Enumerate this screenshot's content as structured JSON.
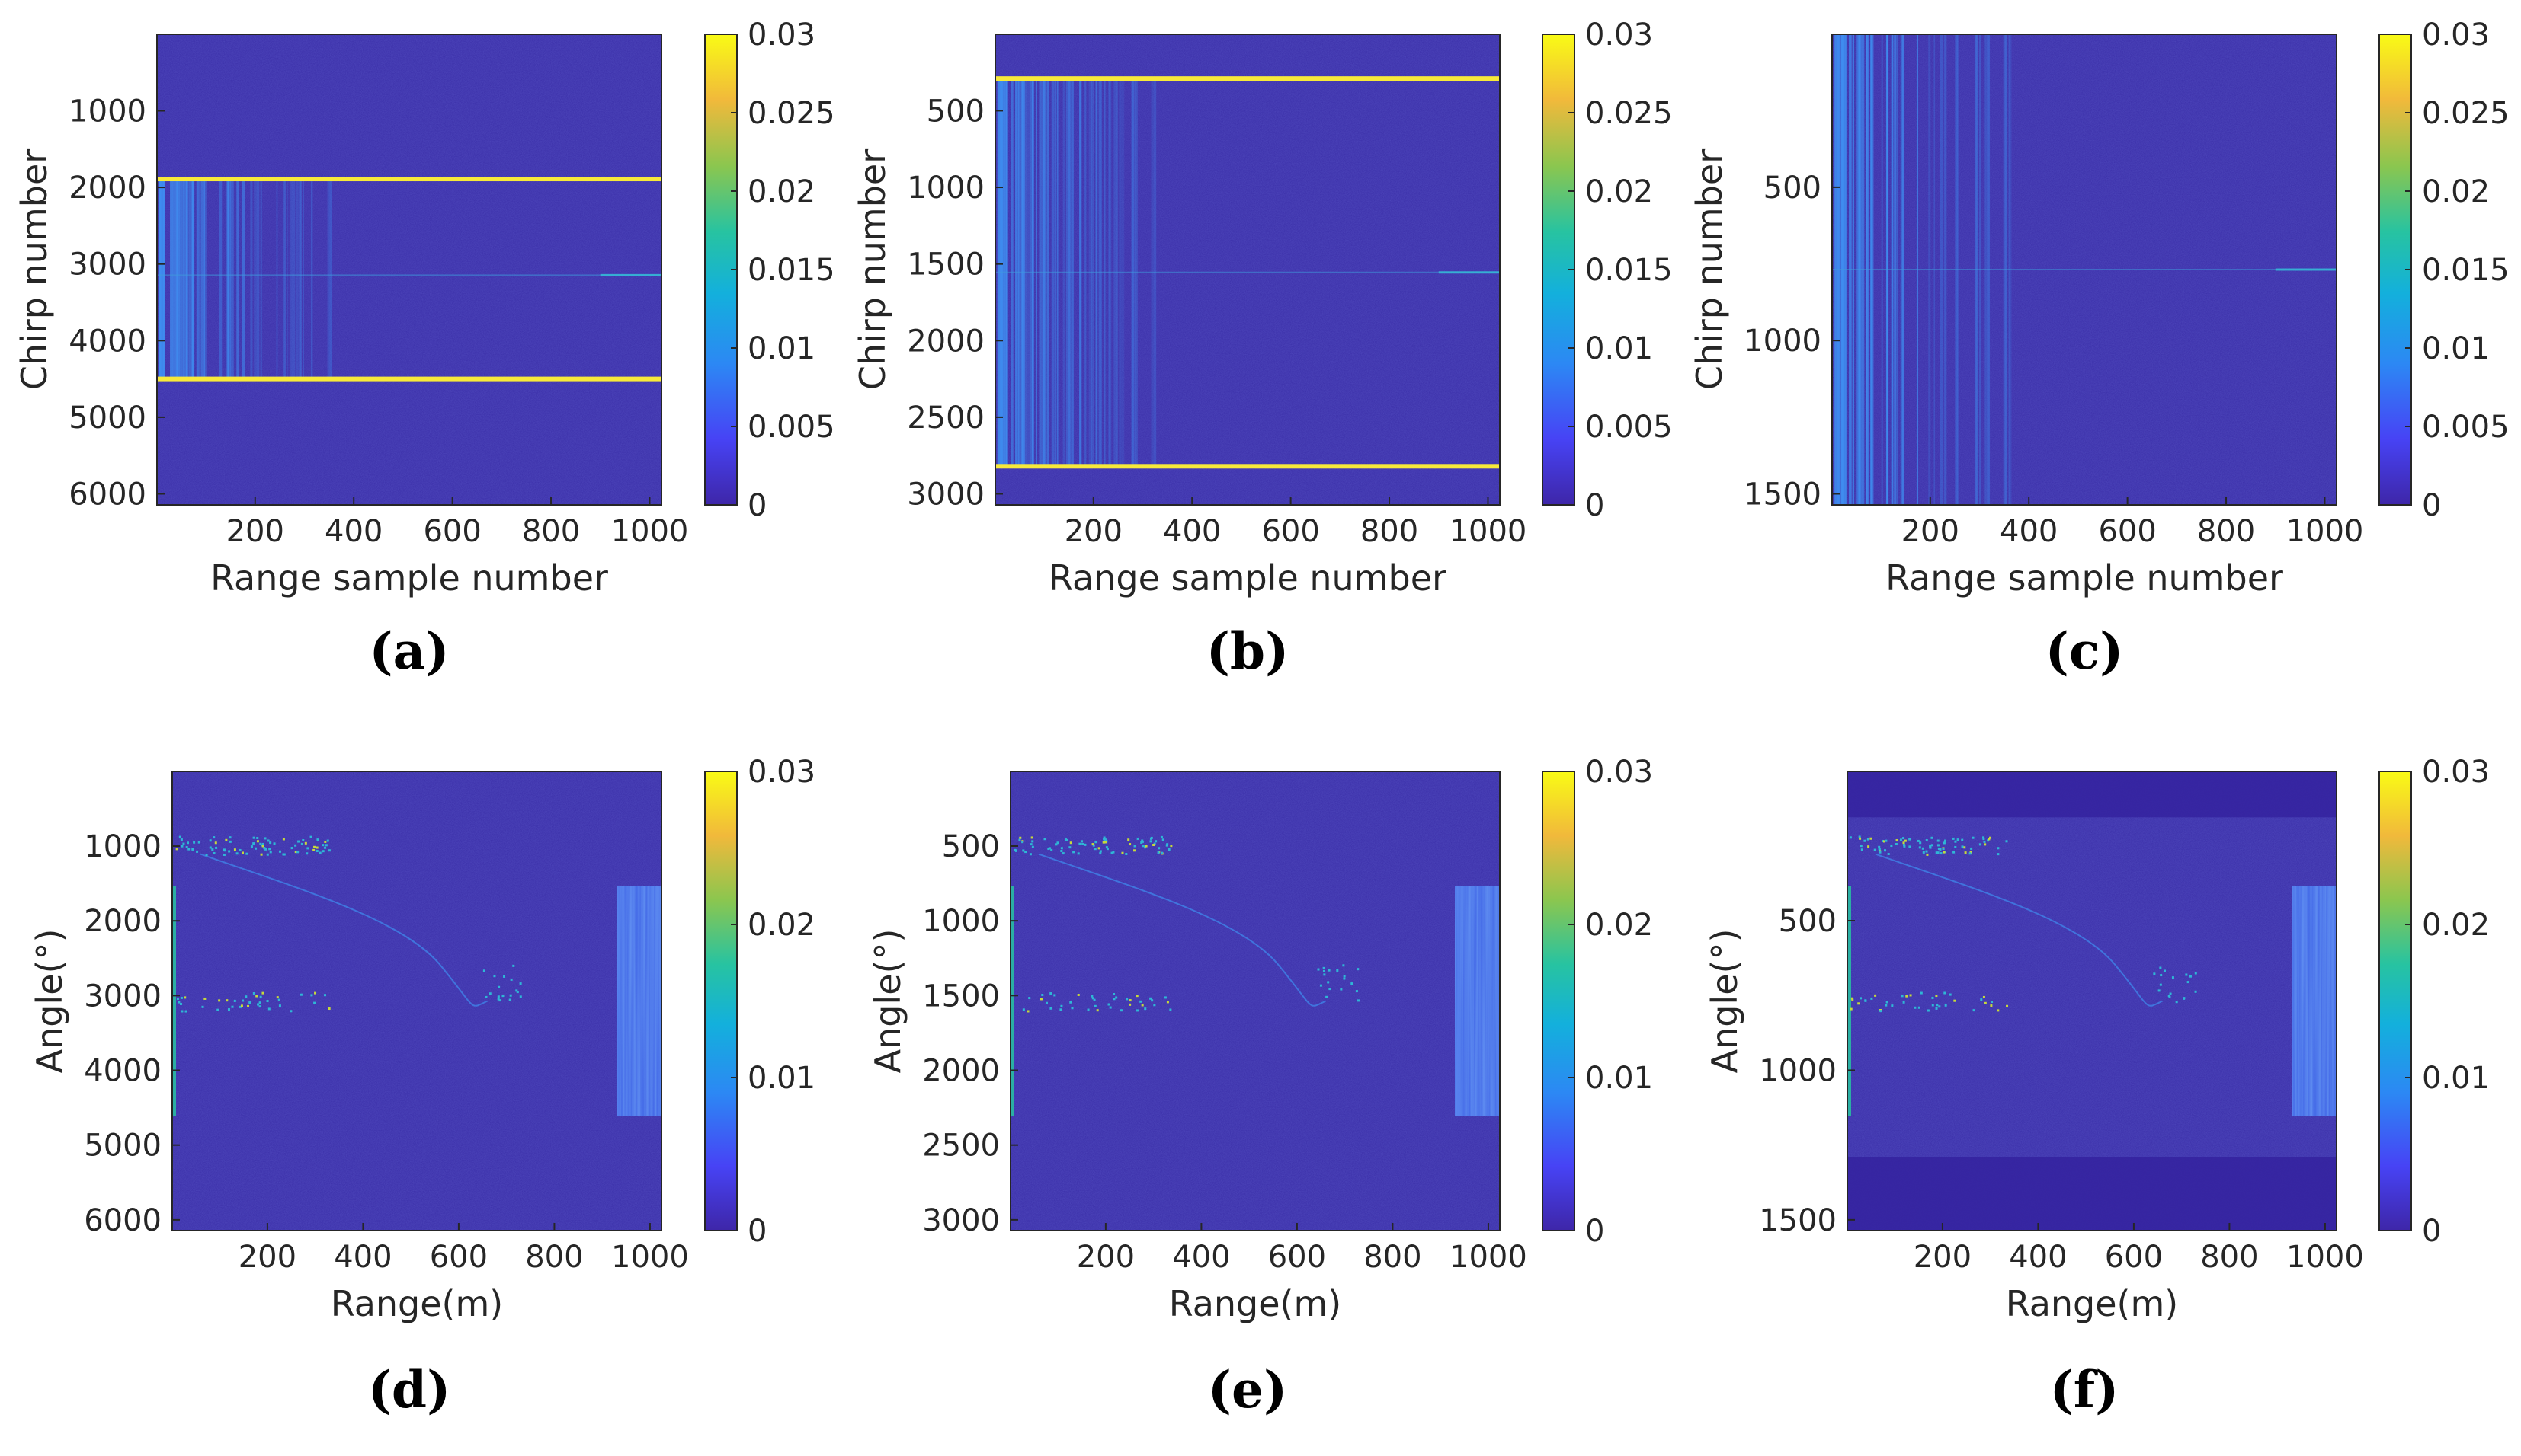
{
  "colors": {
    "background": "#ffffff",
    "heatmap_base": "#3a2ea8",
    "highlight_line": "#f7e93a",
    "axis": "#262626",
    "colormap": [
      "#3e26a8",
      "#4743f5",
      "#2c88f4",
      "#13b0dc",
      "#27c3a1",
      "#8bc64f",
      "#f1b93b",
      "#f9fb15"
    ]
  },
  "chart_data": [
    {
      "type": "heatmap",
      "panel": "(a)",
      "xlabel": "Range sample number",
      "ylabel": "Chirp number",
      "xlim": [
        1,
        1024
      ],
      "ylim": [
        1,
        6144
      ],
      "xticks": [
        "200",
        "400",
        "600",
        "800",
        "1000"
      ],
      "xtick_values": [
        200,
        400,
        600,
        800,
        1000
      ],
      "yticks": [
        "1000",
        "2000",
        "3000",
        "4000",
        "5000",
        "6000"
      ],
      "ytick_values": [
        1000,
        2000,
        3000,
        4000,
        5000,
        6000
      ],
      "highlight_lines_y": [
        1890,
        4500
      ],
      "colorbar_ticks": [
        "0",
        "0.005",
        "0.01",
        "0.015",
        "0.02",
        "0.025",
        "0.03"
      ],
      "colorbar_values": [
        0,
        0.005,
        0.01,
        0.015,
        0.02,
        0.025,
        0.03
      ],
      "colorbar_range": [
        0,
        0.03
      ]
    },
    {
      "type": "heatmap",
      "panel": "(b)",
      "xlabel": "Range sample number",
      "ylabel": "Chirp number",
      "xlim": [
        1,
        1024
      ],
      "ylim": [
        1,
        3072
      ],
      "xticks": [
        "200",
        "400",
        "600",
        "800",
        "1000"
      ],
      "xtick_values": [
        200,
        400,
        600,
        800,
        1000
      ],
      "yticks": [
        "500",
        "1000",
        "1500",
        "2000",
        "2500",
        "3000"
      ],
      "ytick_values": [
        500,
        1000,
        1500,
        2000,
        2500,
        3000
      ],
      "highlight_lines_y": [
        290,
        2820
      ],
      "colorbar_ticks": [
        "0",
        "0.005",
        "0.01",
        "0.015",
        "0.02",
        "0.025",
        "0.03"
      ],
      "colorbar_values": [
        0,
        0.005,
        0.01,
        0.015,
        0.02,
        0.025,
        0.03
      ],
      "colorbar_range": [
        0,
        0.03
      ]
    },
    {
      "type": "heatmap",
      "panel": "(c)",
      "xlabel": "Range sample number",
      "ylabel": "Chirp number",
      "xlim": [
        1,
        1024
      ],
      "ylim": [
        1,
        1536
      ],
      "xticks": [
        "200",
        "400",
        "600",
        "800",
        "1000"
      ],
      "xtick_values": [
        200,
        400,
        600,
        800,
        1000
      ],
      "yticks": [
        "500",
        "1000",
        "1500"
      ],
      "ytick_values": [
        500,
        1000,
        1500
      ],
      "highlight_lines_y": [],
      "colorbar_ticks": [
        "0",
        "0.005",
        "0.01",
        "0.015",
        "0.02",
        "0.025",
        "0.03"
      ],
      "colorbar_values": [
        0,
        0.005,
        0.01,
        0.015,
        0.02,
        0.025,
        0.03
      ],
      "colorbar_range": [
        0,
        0.03
      ]
    },
    {
      "type": "heatmap",
      "panel": "(d)",
      "xlabel": "Range(m)",
      "ylabel": "Angle(°)",
      "xlim": [
        1,
        1024
      ],
      "ylim": [
        1,
        6144
      ],
      "xticks": [
        "200",
        "400",
        "600",
        "800",
        "1000"
      ],
      "xtick_values": [
        200,
        400,
        600,
        800,
        1000
      ],
      "yticks": [
        "1000",
        "2000",
        "3000",
        "4000",
        "5000",
        "6000"
      ],
      "ytick_values": [
        1000,
        2000,
        3000,
        4000,
        5000,
        6000
      ],
      "highlight_lines_y": [],
      "colorbar_ticks": [
        "0",
        "0.01",
        "0.02",
        "0.03"
      ],
      "colorbar_values": [
        0,
        0.01,
        0.02,
        0.03
      ],
      "colorbar_range": [
        0,
        0.03
      ]
    },
    {
      "type": "heatmap",
      "panel": "(e)",
      "xlabel": "Range(m)",
      "ylabel": "Angle(°)",
      "xlim": [
        1,
        1024
      ],
      "ylim": [
        1,
        3072
      ],
      "xticks": [
        "200",
        "400",
        "600",
        "800",
        "1000"
      ],
      "xtick_values": [
        200,
        400,
        600,
        800,
        1000
      ],
      "yticks": [
        "500",
        "1000",
        "1500",
        "2000",
        "2500",
        "3000"
      ],
      "ytick_values": [
        500,
        1000,
        1500,
        2000,
        2500,
        3000
      ],
      "highlight_lines_y": [],
      "colorbar_ticks": [
        "0",
        "0.01",
        "0.02",
        "0.03"
      ],
      "colorbar_values": [
        0,
        0.01,
        0.02,
        0.03
      ],
      "colorbar_range": [
        0,
        0.03
      ]
    },
    {
      "type": "heatmap",
      "panel": "(f)",
      "xlabel": "Range(m)",
      "ylabel": "Angle(°)",
      "xlim": [
        1,
        1024
      ],
      "ylim": [
        1,
        1536
      ],
      "xticks": [
        "200",
        "400",
        "600",
        "800",
        "1000"
      ],
      "xtick_values": [
        200,
        400,
        600,
        800,
        1000
      ],
      "yticks": [
        "500",
        "1000",
        "1500"
      ],
      "ytick_values": [
        500,
        1000,
        1500
      ],
      "highlight_lines_y": [],
      "colorbar_ticks": [
        "0",
        "0.01",
        "0.02",
        "0.03"
      ],
      "colorbar_values": [
        0,
        0.01,
        0.02,
        0.03
      ],
      "colorbar_range": [
        0,
        0.03
      ]
    }
  ]
}
